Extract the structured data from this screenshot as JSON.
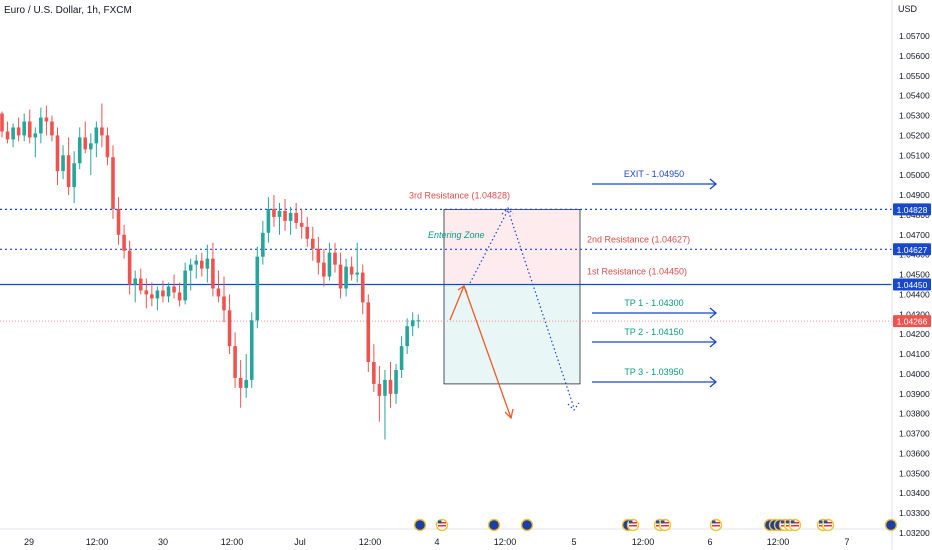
{
  "header": {
    "symbol_title": "Euro / U.S. Dollar, 1h, FXCM",
    "currency": "USD"
  },
  "colors": {
    "up": "#26a69a",
    "down": "#ef5350",
    "blue": "#1848cc",
    "red_line": "#f28b8b",
    "zone_red": "#fdebee",
    "zone_green": "#e8f6f6",
    "current_price_bg": "#ef5350"
  },
  "chart_data": {
    "type": "candlestick",
    "y_axis": {
      "min": 1.032,
      "max": 1.059,
      "ticks": [
        "1.05700",
        "1.05600",
        "1.05500",
        "1.05400",
        "1.05300",
        "1.05200",
        "1.05100",
        "1.05000",
        "1.04900",
        "1.04800",
        "1.04700",
        "1.04600",
        "1.04500",
        "1.04400",
        "1.04300",
        "1.04200",
        "1.04100",
        "1.04000",
        "1.03900",
        "1.03800",
        "1.03700",
        "1.03600",
        "1.03500",
        "1.03400",
        "1.03300",
        "1.03200"
      ]
    },
    "x_axis": {
      "ticks": [
        "29",
        "12:00",
        "30",
        "12:00",
        "Jul",
        "12:00",
        "4",
        "12:00",
        "5",
        "12:00",
        "6",
        "12:00",
        "7"
      ]
    },
    "price_labels": [
      {
        "value": "1.04828",
        "style": "blue"
      },
      {
        "value": "1.04627",
        "style": "blue"
      },
      {
        "value": "1.04450",
        "style": "blue"
      },
      {
        "value": "1.04266",
        "style": "red"
      }
    ],
    "levels": [
      {
        "name": "3rd Resistance",
        "price": 1.04828,
        "label": "3rd Resistance (1.04828)",
        "style": "dotted"
      },
      {
        "name": "2nd Resistance",
        "price": 1.04627,
        "label": "2nd Resistance (1.04627)",
        "style": "dotted"
      },
      {
        "name": "1st Resistance",
        "price": 1.0445,
        "label": "1st Resistance (1.04450)",
        "style": "solid"
      },
      {
        "name": "Current",
        "price": 1.04266,
        "style": "dotted-red"
      }
    ],
    "targets": [
      {
        "label": "EXIT - 1.04950",
        "price": 1.0495,
        "color": "#1848cc"
      },
      {
        "label": "TP 1 - 1.04300",
        "price": 1.043,
        "color": "#089981"
      },
      {
        "label": "TP 2 - 1.04150",
        "price": 1.0415,
        "color": "#089981"
      },
      {
        "label": "TP 3 - 1.03950",
        "price": 1.0395,
        "color": "#089981"
      }
    ],
    "zone_label": "Entering Zone",
    "candles": [
      [
        1.0531,
        1.0532,
        1.0519,
        1.0522
      ],
      [
        1.0522,
        1.0527,
        1.0516,
        1.0518
      ],
      [
        1.0518,
        1.0526,
        1.0514,
        1.0524
      ],
      [
        1.0524,
        1.0529,
        1.0517,
        1.052
      ],
      [
        1.052,
        1.0531,
        1.0517,
        1.0527
      ],
      [
        1.0527,
        1.0533,
        1.0516,
        1.0519
      ],
      [
        1.0519,
        1.0524,
        1.0509,
        1.0521
      ],
      [
        1.0521,
        1.0534,
        1.0516,
        1.0529
      ],
      [
        1.0529,
        1.0535,
        1.052,
        1.0527
      ],
      [
        1.0527,
        1.053,
        1.0517,
        1.052
      ],
      [
        1.052,
        1.0524,
        1.0495,
        1.0502
      ],
      [
        1.0502,
        1.0515,
        1.0498,
        1.051
      ],
      [
        1.051,
        1.0519,
        1.049,
        1.0494
      ],
      [
        1.0494,
        1.0512,
        1.0486,
        1.0506
      ],
      [
        1.0506,
        1.0524,
        1.0503,
        1.0519
      ],
      [
        1.0519,
        1.0527,
        1.0511,
        1.0513
      ],
      [
        1.0513,
        1.0521,
        1.05,
        1.0516
      ],
      [
        1.0516,
        1.0527,
        1.0509,
        1.0524
      ],
      [
        1.0524,
        1.0536,
        1.0514,
        1.052
      ],
      [
        1.052,
        1.0524,
        1.0505,
        1.0509
      ],
      [
        1.0509,
        1.0515,
        1.0478,
        1.0483
      ],
      [
        1.0483,
        1.0489,
        1.0465,
        1.047
      ],
      [
        1.047,
        1.0475,
        1.0458,
        1.0462
      ],
      [
        1.0462,
        1.0467,
        1.044,
        1.0445
      ],
      [
        1.0445,
        1.0452,
        1.0436,
        1.0448
      ],
      [
        1.0448,
        1.0453,
        1.044,
        1.0442
      ],
      [
        1.0442,
        1.0448,
        1.0433,
        1.044
      ],
      [
        1.044,
        1.0446,
        1.0434,
        1.0438
      ],
      [
        1.0438,
        1.0444,
        1.0432,
        1.0442
      ],
      [
        1.0442,
        1.0447,
        1.0436,
        1.0439
      ],
      [
        1.0439,
        1.0446,
        1.0436,
        1.0444
      ],
      [
        1.0444,
        1.045,
        1.0438,
        1.0441
      ],
      [
        1.0441,
        1.0446,
        1.0434,
        1.0437
      ],
      [
        1.0437,
        1.0456,
        1.0435,
        1.0452
      ],
      [
        1.0452,
        1.0458,
        1.0442,
        1.0455
      ],
      [
        1.0455,
        1.046,
        1.0448,
        1.0457
      ],
      [
        1.0457,
        1.0461,
        1.0449,
        1.0453
      ],
      [
        1.0453,
        1.0465,
        1.0446,
        1.0458
      ],
      [
        1.0458,
        1.0466,
        1.0439,
        1.0443
      ],
      [
        1.0443,
        1.0452,
        1.0436,
        1.0439
      ],
      [
        1.0439,
        1.0449,
        1.0426,
        1.0432
      ],
      [
        1.0432,
        1.044,
        1.041,
        1.0414
      ],
      [
        1.0414,
        1.0421,
        1.0393,
        1.0398
      ],
      [
        1.0398,
        1.0407,
        1.0383,
        1.0393
      ],
      [
        1.0393,
        1.041,
        1.0388,
        1.0397
      ],
      [
        1.0397,
        1.0431,
        1.0393,
        1.0427
      ],
      [
        1.0427,
        1.0464,
        1.0423,
        1.0459
      ],
      [
        1.0459,
        1.0477,
        1.0455,
        1.0471
      ],
      [
        1.0471,
        1.0489,
        1.0466,
        1.0483
      ],
      [
        1.0483,
        1.049,
        1.0474,
        1.0479
      ],
      [
        1.0479,
        1.0486,
        1.047,
        1.0482
      ],
      [
        1.0482,
        1.0488,
        1.0472,
        1.0477
      ],
      [
        1.0477,
        1.0484,
        1.047,
        1.0481
      ],
      [
        1.0481,
        1.0486,
        1.0473,
        1.0476
      ],
      [
        1.0476,
        1.0483,
        1.0468,
        1.0474
      ],
      [
        1.0474,
        1.0479,
        1.0464,
        1.0468
      ],
      [
        1.0468,
        1.0474,
        1.0457,
        1.0463
      ],
      [
        1.0463,
        1.0469,
        1.045,
        1.0456
      ],
      [
        1.0456,
        1.0463,
        1.0444,
        1.0449
      ],
      [
        1.0449,
        1.0466,
        1.0447,
        1.0461
      ],
      [
        1.0461,
        1.0466,
        1.0451,
        1.0455
      ],
      [
        1.0455,
        1.0461,
        1.0438,
        1.0443
      ],
      [
        1.0443,
        1.0458,
        1.0439,
        1.0454
      ],
      [
        1.0454,
        1.0459,
        1.0447,
        1.045
      ],
      [
        1.045,
        1.0466,
        1.0446,
        1.0451
      ],
      [
        1.0451,
        1.0455,
        1.043,
        1.0436
      ],
      [
        1.0436,
        1.044,
        1.0401,
        1.0406
      ],
      [
        1.0406,
        1.0415,
        1.0391,
        1.0395
      ],
      [
        1.0395,
        1.0404,
        1.0376,
        1.0389
      ],
      [
        1.0389,
        1.0402,
        1.0367,
        1.0397
      ],
      [
        1.0397,
        1.0406,
        1.0383,
        1.039
      ],
      [
        1.039,
        1.0405,
        1.0385,
        1.0402
      ],
      [
        1.0402,
        1.0419,
        1.0398,
        1.0414
      ],
      [
        1.0414,
        1.0428,
        1.041,
        1.0424
      ],
      [
        1.0424,
        1.0431,
        1.0419,
        1.0427
      ],
      [
        1.0427,
        1.043,
        1.0423,
        1.0427
      ]
    ]
  },
  "events": [
    {
      "type": "flag-eu"
    },
    {
      "type": "flag-us"
    },
    {
      "type": "flag-eu"
    },
    {
      "type": "flag-eu"
    },
    {
      "type": "flag-eu-us"
    },
    {
      "type": "flag-us-us"
    },
    {
      "type": "flag-us"
    },
    {
      "type": "flag-multi"
    },
    {
      "type": "flag-us-us"
    },
    {
      "type": "flag-eu"
    }
  ]
}
